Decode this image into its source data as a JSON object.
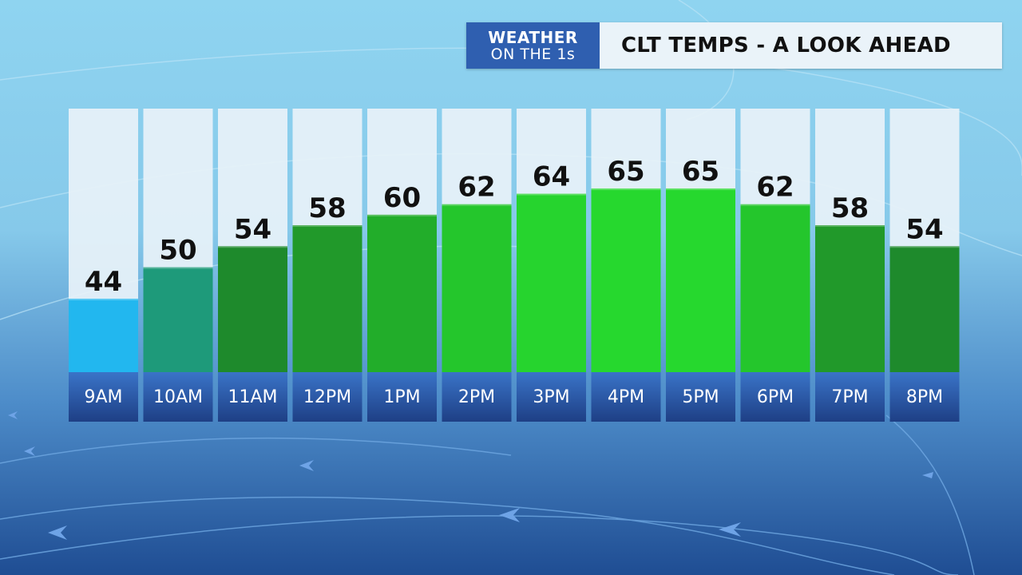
{
  "header": {
    "logo_line1": "WEATHER",
    "logo_line2": "ON THE 1s",
    "title": "CLT TEMPS - A LOOK AHEAD"
  },
  "colors": {
    "logo_bg": "#2f5fb0",
    "title_bg": "#eaf3f9",
    "time_band_top": "#3a74c8",
    "time_band_bottom": "#1e3f85"
  },
  "chart_data": {
    "type": "bar",
    "title": "CLT TEMPS - A LOOK AHEAD",
    "categories": [
      "9AM",
      "10AM",
      "11AM",
      "12PM",
      "1PM",
      "2PM",
      "3PM",
      "4PM",
      "5PM",
      "6PM",
      "7PM",
      "8PM"
    ],
    "values": [
      44,
      50,
      54,
      58,
      60,
      62,
      64,
      65,
      65,
      62,
      58,
      54
    ],
    "bar_colors": [
      "#22b7ef",
      "#1e9a7a",
      "#1e8a2c",
      "#21992a",
      "#22ad2a",
      "#24c62c",
      "#26d42e",
      "#26d82e",
      "#26d82e",
      "#24c62c",
      "#21992a",
      "#1e8a2c"
    ],
    "ylim": [
      30,
      72
    ],
    "grid": false,
    "legend": "none",
    "data_labels": true
  }
}
